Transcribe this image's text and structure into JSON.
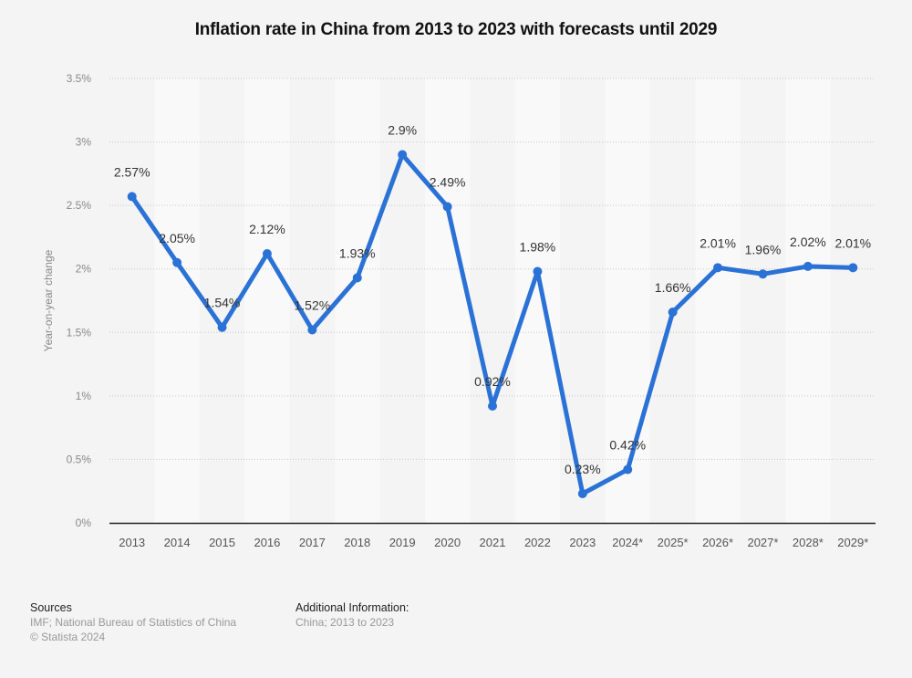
{
  "chart_data": {
    "type": "line",
    "title": "Inflation rate in China from 2013 to 2023 with forecasts until 2029",
    "xlabel": "",
    "ylabel": "Year-on-year change",
    "categories": [
      "2013",
      "2014",
      "2015",
      "2016",
      "2017",
      "2018",
      "2019",
      "2020",
      "2021",
      "2022",
      "2023",
      "2024*",
      "2025*",
      "2026*",
      "2027*",
      "2028*",
      "2029*"
    ],
    "series": [
      {
        "name": "Inflation rate",
        "values": [
          2.57,
          2.05,
          1.54,
          2.12,
          1.52,
          1.93,
          2.9,
          2.49,
          0.92,
          1.98,
          0.23,
          0.42,
          1.66,
          2.01,
          1.96,
          2.02,
          2.01
        ],
        "labels": [
          "2.57%",
          "2.05%",
          "1.54%",
          "2.12%",
          "1.52%",
          "1.93%",
          "2.9%",
          "2.49%",
          "0.92%",
          "1.98%",
          "0.23%",
          "0.42%",
          "1.66%",
          "2.01%",
          "1.96%",
          "2.02%",
          "2.01%"
        ]
      }
    ],
    "ylim": [
      0,
      3.5
    ],
    "yticks": [
      0,
      0.5,
      1,
      1.5,
      2,
      2.5,
      3,
      3.5
    ],
    "ytick_labels": [
      "0%",
      "0.5%",
      "1%",
      "1.5%",
      "2%",
      "2.5%",
      "3%",
      "3.5%"
    ],
    "grid": true,
    "legend": "none",
    "colors": {
      "line": "#2b72d6",
      "grid": "#c8c8c8",
      "band_light": "#f9f9f9",
      "band_dark": "#f4f4f4",
      "axis": "#222222",
      "tick_text": "#555555",
      "label_text": "#333333"
    }
  },
  "footer": {
    "sources_heading": "Sources",
    "sources_line1": "IMF; National Bureau of Statistics of China",
    "sources_line2": "© Statista 2024",
    "additional_heading": "Additional Information:",
    "additional_line1": "China; 2013 to 2023"
  }
}
